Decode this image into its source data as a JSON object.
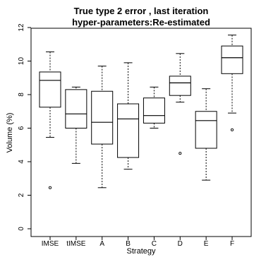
{
  "chart_data": {
    "type": "boxplot",
    "title": "True type 2 error , last iteration",
    "subtitle": "hyper-parameters:Re-estimated",
    "xlabel": "Strategy",
    "ylabel": "Volume (%)",
    "ylim": [
      0,
      12
    ],
    "yticks": [
      "0",
      "2",
      "4",
      "6",
      "8",
      "10",
      "12"
    ],
    "categories": [
      "IMSE",
      "tIMSE",
      "A",
      "B",
      "C",
      "D",
      "E",
      "F"
    ],
    "boxes": [
      {
        "min": 5.45,
        "q1": 7.25,
        "median": 8.85,
        "q3": 9.35,
        "max": 10.55,
        "outliers": [
          2.45
        ]
      },
      {
        "min": 3.9,
        "q1": 6.0,
        "median": 6.85,
        "q3": 8.3,
        "max": 8.45,
        "outliers": []
      },
      {
        "min": 2.45,
        "q1": 5.05,
        "median": 6.35,
        "q3": 8.2,
        "max": 9.7,
        "outliers": []
      },
      {
        "min": 3.55,
        "q1": 4.25,
        "median": 6.55,
        "q3": 7.45,
        "max": 9.9,
        "outliers": []
      },
      {
        "min": 6.0,
        "q1": 6.3,
        "median": 6.75,
        "q3": 7.8,
        "max": 8.45,
        "outliers": []
      },
      {
        "min": 7.55,
        "q1": 7.95,
        "median": 8.7,
        "q3": 9.1,
        "max": 10.45,
        "outliers": [
          4.5
        ]
      },
      {
        "min": 2.9,
        "q1": 4.8,
        "median": 6.45,
        "q3": 7.0,
        "max": 8.35,
        "outliers": []
      },
      {
        "min": 6.9,
        "q1": 9.25,
        "median": 10.2,
        "q3": 10.9,
        "max": 11.55,
        "outliers": [
          5.9
        ]
      }
    ]
  }
}
